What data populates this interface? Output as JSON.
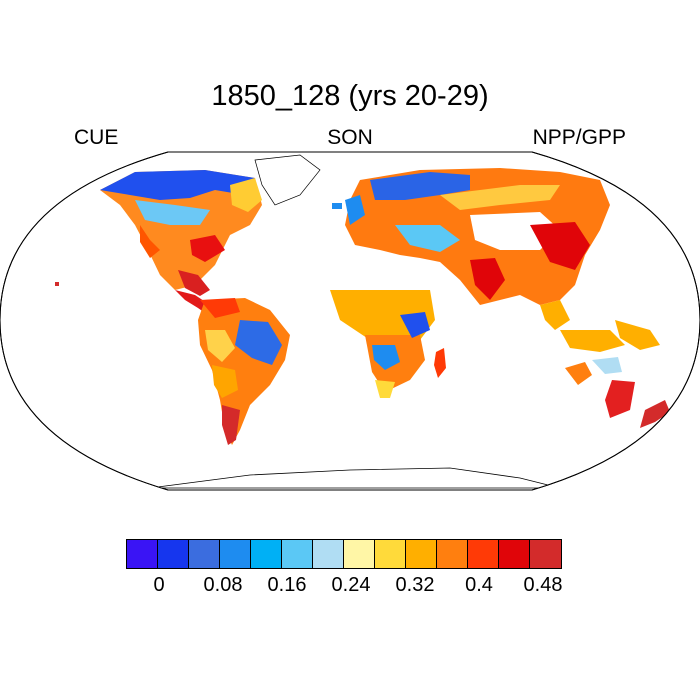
{
  "title": "1850_128 (yrs 20-29)",
  "subtitle_left": "CUE",
  "subtitle_center": "SON",
  "subtitle_right": "NPP/GPP",
  "colorbar": {
    "colors": [
      "#3a14f5",
      "#1636ee",
      "#3b6ddf",
      "#1e8cf0",
      "#00b0f5",
      "#5bc8f5",
      "#b0ddf3",
      "#fff6a6",
      "#ffda3a",
      "#ffaf00",
      "#ff7f0f",
      "#ff3a06",
      "#e00509",
      "#d32b2b"
    ],
    "tick_labels": [
      "0",
      "0.08",
      "0.16",
      "0.24",
      "0.32",
      "0.4",
      "0.48"
    ]
  },
  "map": {
    "projection": "robinson",
    "variable": "NPP/GPP",
    "season": "SON",
    "fill_color": "#ffffff"
  }
}
